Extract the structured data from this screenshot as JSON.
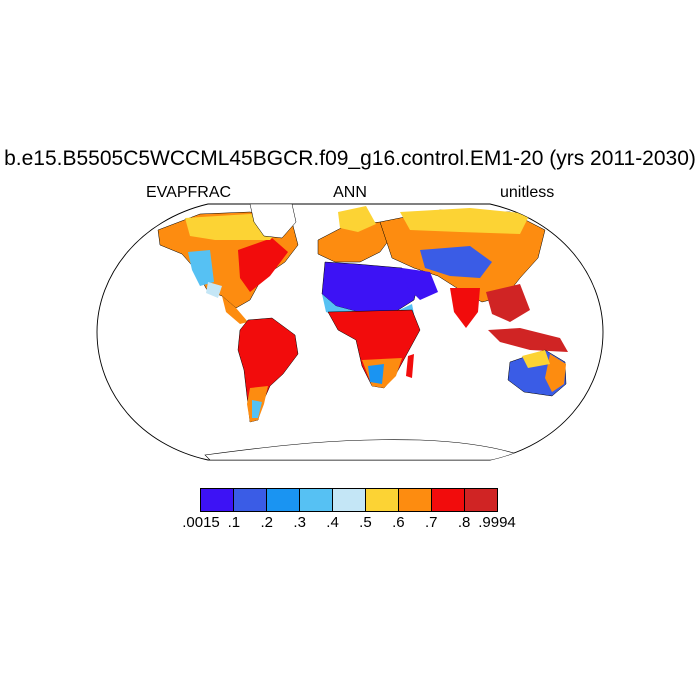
{
  "title": "b.e15.B5505C5WCCML45BGCR.f09_g16.control.EM1-20 (yrs 2011-2030)",
  "subtitle_left": "EVAPFRAC",
  "subtitle_center": "ANN",
  "subtitle_right": "unitless",
  "colorbar": {
    "colors": [
      "#3d12f5",
      "#3a5ce6",
      "#1a94f2",
      "#56c1f3",
      "#c4e6f6",
      "#fcd334",
      "#fd8c10",
      "#f20c0c",
      "#d02424"
    ],
    "labels": [
      ".0015",
      ".1",
      ".2",
      ".3",
      ".4",
      ".5",
      ".6",
      ".7",
      ".8",
      ".9994"
    ]
  }
}
